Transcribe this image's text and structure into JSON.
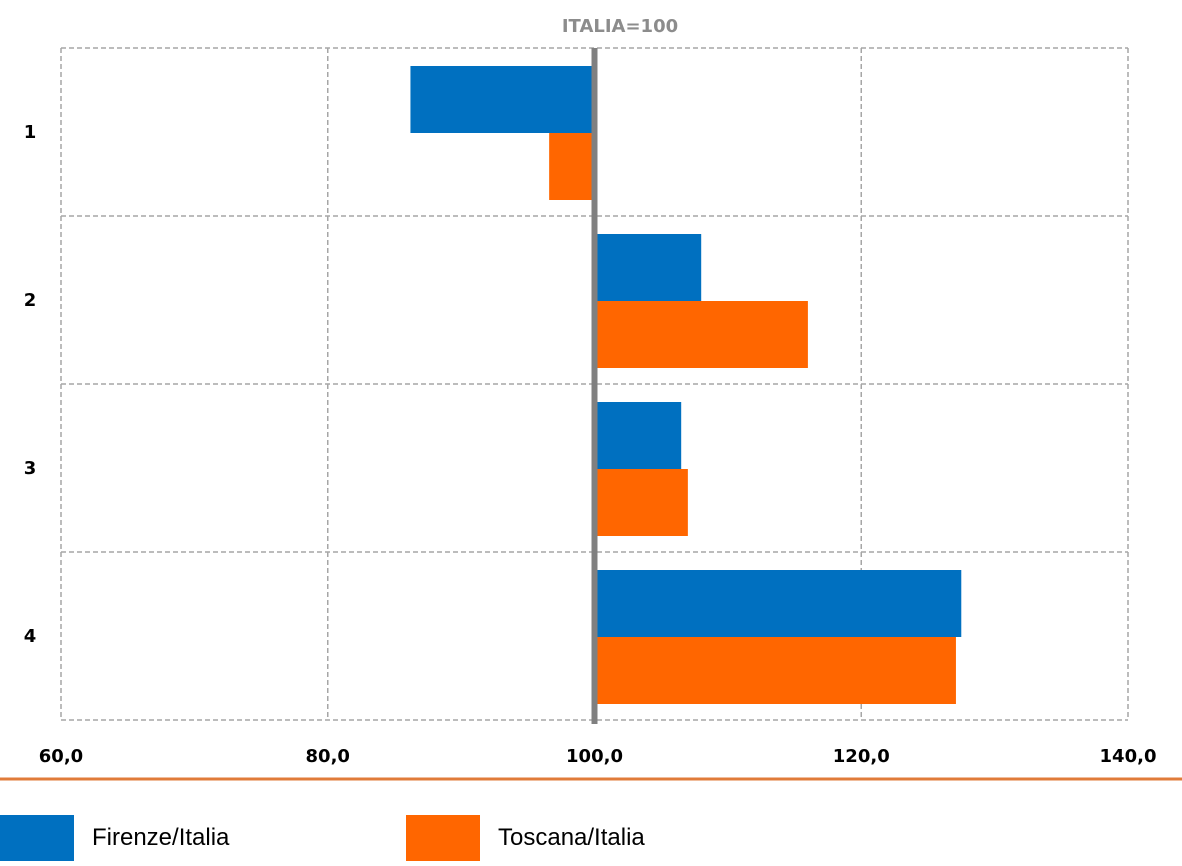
{
  "chart_data": {
    "type": "bar",
    "orientation": "horizontal",
    "title": "ITALIA=100",
    "reference_value": 100,
    "categories": [
      "1",
      "2",
      "3",
      "4"
    ],
    "series": [
      {
        "name": "Firenze/Italia",
        "color": "#0070c0",
        "values": [
          86.2,
          108.0,
          106.5,
          127.5
        ]
      },
      {
        "name": "Toscana/Italia",
        "color": "#ff6600",
        "values": [
          96.6,
          116.0,
          107.0,
          127.1
        ]
      }
    ],
    "xlim": [
      60,
      140
    ],
    "x_ticks": [
      "60,0",
      "80,0",
      "100,0",
      "120,0",
      "140,0"
    ],
    "grid": true,
    "legend_position": "bottom"
  }
}
